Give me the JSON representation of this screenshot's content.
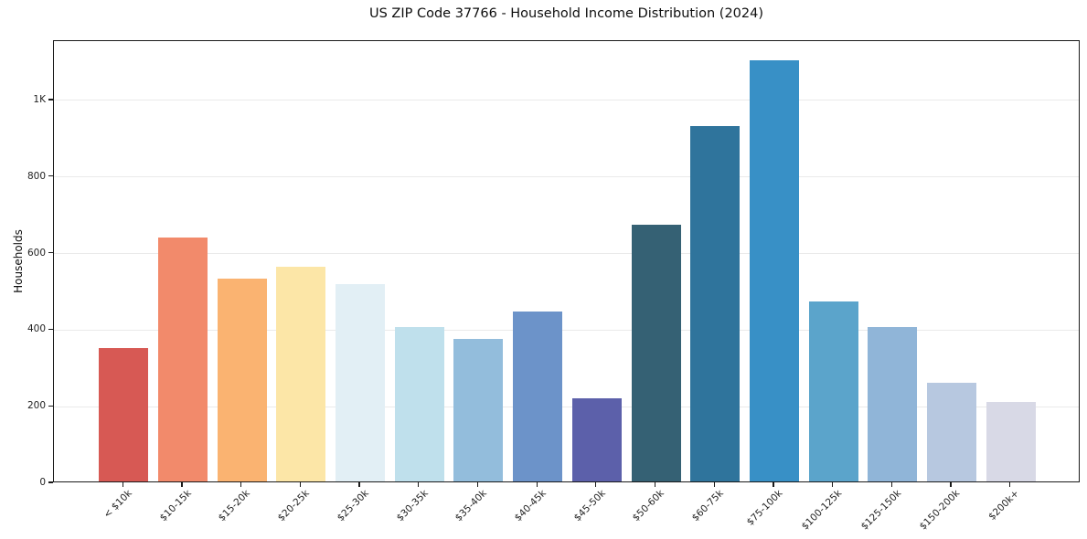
{
  "figure": {
    "background_color": "#ffffff",
    "spine_color": "#1a1a1a",
    "gridline_color": "#eaeaea",
    "text_color": "#1f1f1f"
  },
  "chart_data": {
    "type": "bar",
    "title": "US ZIP Code 37766 - Household Income Distribution (2024)",
    "xlabel": "",
    "ylabel": "Households",
    "categories": [
      "< $10k",
      "$10-15k",
      "$15-20k",
      "$20-25k",
      "$25-30k",
      "$30-35k",
      "$35-40k",
      "$40-45k",
      "$45-50k",
      "$50-60k",
      "$60-75k",
      "$75-100k",
      "$100-125k",
      "$125-150k",
      "$150-200k",
      "$200k+"
    ],
    "values": [
      349,
      638,
      530,
      562,
      516,
      404,
      373,
      444,
      218,
      670,
      928,
      1100,
      471,
      404,
      257,
      208
    ],
    "bar_colors": [
      "#d75954",
      "#f28a6b",
      "#fab371",
      "#fce6a7",
      "#e2eff5",
      "#bfe0ec",
      "#93bddc",
      "#6c93c9",
      "#5c60aa",
      "#356174",
      "#2f749c",
      "#3890c6",
      "#5ba4cb",
      "#90b5d8",
      "#b7c8e0",
      "#d8d9e6"
    ],
    "ylim": [
      0,
      1155
    ],
    "yticks": {
      "values": [
        0,
        200,
        400,
        600,
        800,
        1000
      ],
      "labels": [
        "0",
        "200",
        "400",
        "600",
        "800",
        "1K"
      ]
    },
    "grid": "horizontal",
    "legend": "none",
    "x_tick_rotation_deg": 45
  }
}
